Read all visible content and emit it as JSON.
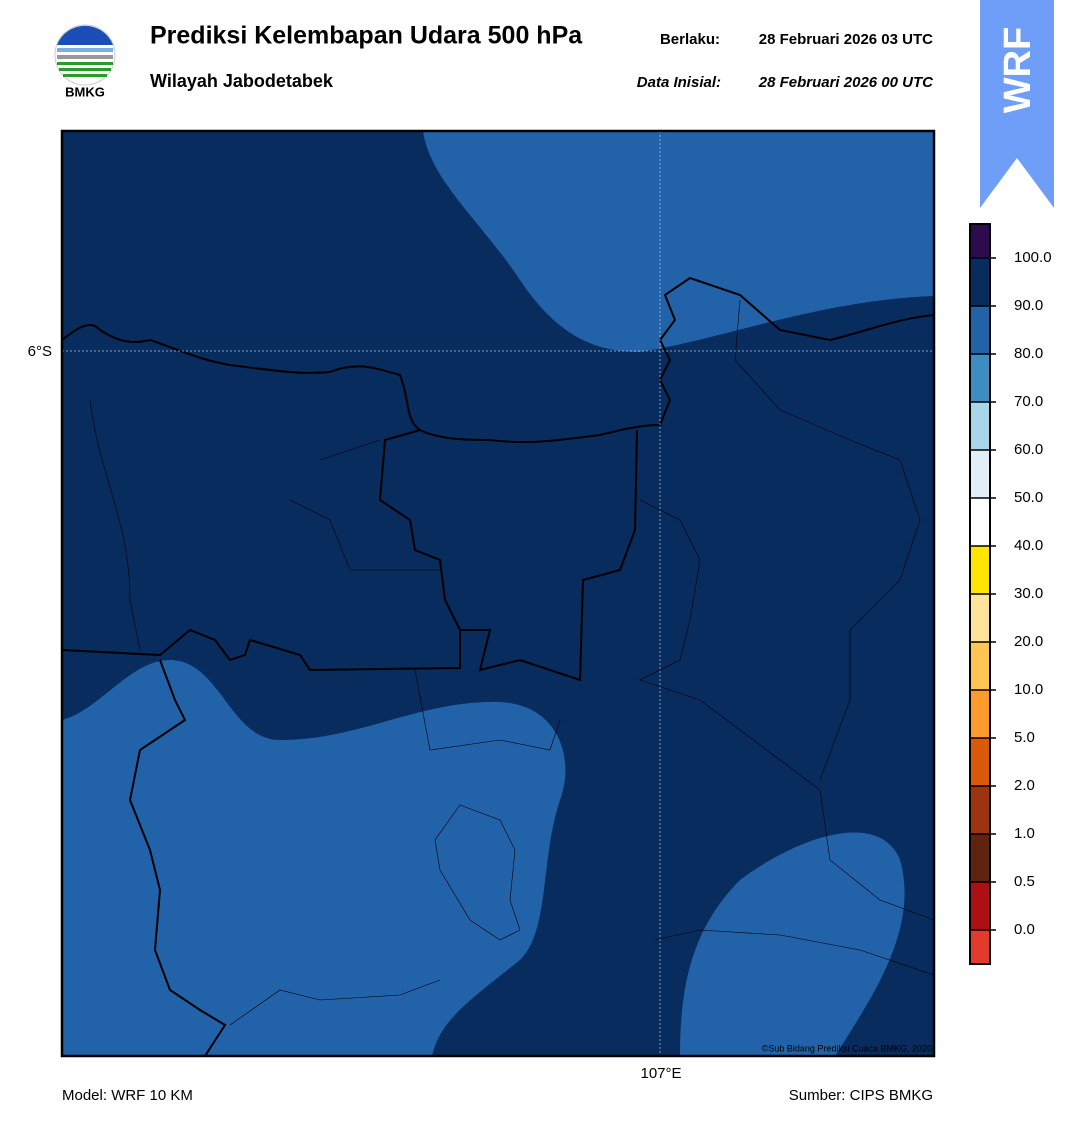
{
  "header": {
    "logo_text": "BMKG",
    "title": "Prediksi Kelembapan Udara 500 hPa",
    "subtitle": "Wilayah Jabodetabek",
    "valid_label": "Berlaku:",
    "valid_time": "28 Februari 2026 03 UTC",
    "init_label": "Data Inisial:",
    "init_time": "28 Februari 2026 00 UTC",
    "badge": "WRF"
  },
  "map": {
    "lat_label": "6°S",
    "lon_label": "107°E",
    "copyright": "©Sub Bidang Prediksi Cuaca BMKG, 2020"
  },
  "colorbar": {
    "colors": [
      "#2c0b4e",
      "#082c5e",
      "#2262a8",
      "#3d8dc3",
      "#a9d5e9",
      "#e1eef8",
      "#ffffff",
      "#ffe500",
      "#ffe39a",
      "#ffc552",
      "#ff9b2c",
      "#da5a0c",
      "#9c3410",
      "#5e2410",
      "#ad1014",
      "#e23a2c"
    ],
    "labels": [
      "100.0",
      "90.0",
      "80.0",
      "70.0",
      "60.0",
      "50.0",
      "40.0",
      "30.0",
      "20.0",
      "10.0",
      "5.0",
      "2.0",
      "1.0",
      "0.5",
      "0.0"
    ]
  },
  "footer": {
    "model": "Model: WRF 10 KM",
    "source": "Sumber: CIPS BMKG"
  }
}
